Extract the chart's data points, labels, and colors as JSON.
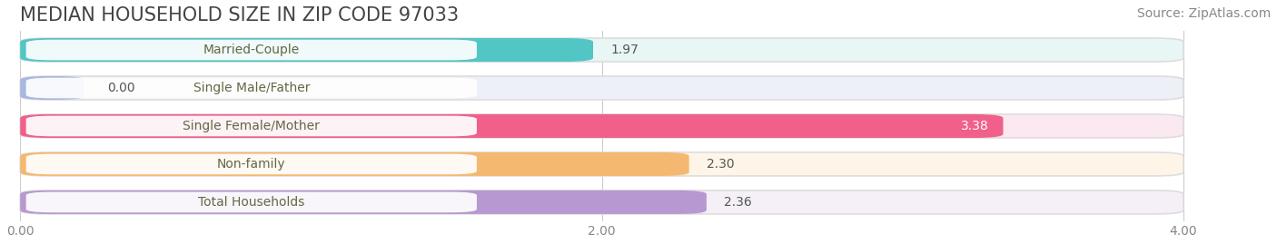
{
  "title": "MEDIAN HOUSEHOLD SIZE IN ZIP CODE 97033",
  "source": "Source: ZipAtlas.com",
  "categories": [
    "Married-Couple",
    "Single Male/Father",
    "Single Female/Mother",
    "Non-family",
    "Total Households"
  ],
  "values": [
    1.97,
    0.0,
    3.38,
    2.3,
    2.36
  ],
  "bar_colors": [
    "#52c5c5",
    "#a8b8e0",
    "#f0608a",
    "#f5b870",
    "#b898d0"
  ],
  "bar_bg_colors": [
    "#e8f6f6",
    "#eef0f8",
    "#fce8f0",
    "#fef5e8",
    "#f5f0f8"
  ],
  "xlim": [
    0,
    4.3
  ],
  "xdata_max": 4.0,
  "xticks": [
    0.0,
    2.0,
    4.0
  ],
  "xtick_labels": [
    "0.00",
    "2.00",
    "4.00"
  ],
  "title_fontsize": 15,
  "source_fontsize": 10,
  "label_fontsize": 10,
  "value_fontsize": 10,
  "bar_height": 0.62,
  "bar_gap": 0.38,
  "figsize": [
    14.06,
    2.69
  ],
  "dpi": 100,
  "bg_color": "#ffffff",
  "text_color": "#555555",
  "label_text_color": "#666644"
}
